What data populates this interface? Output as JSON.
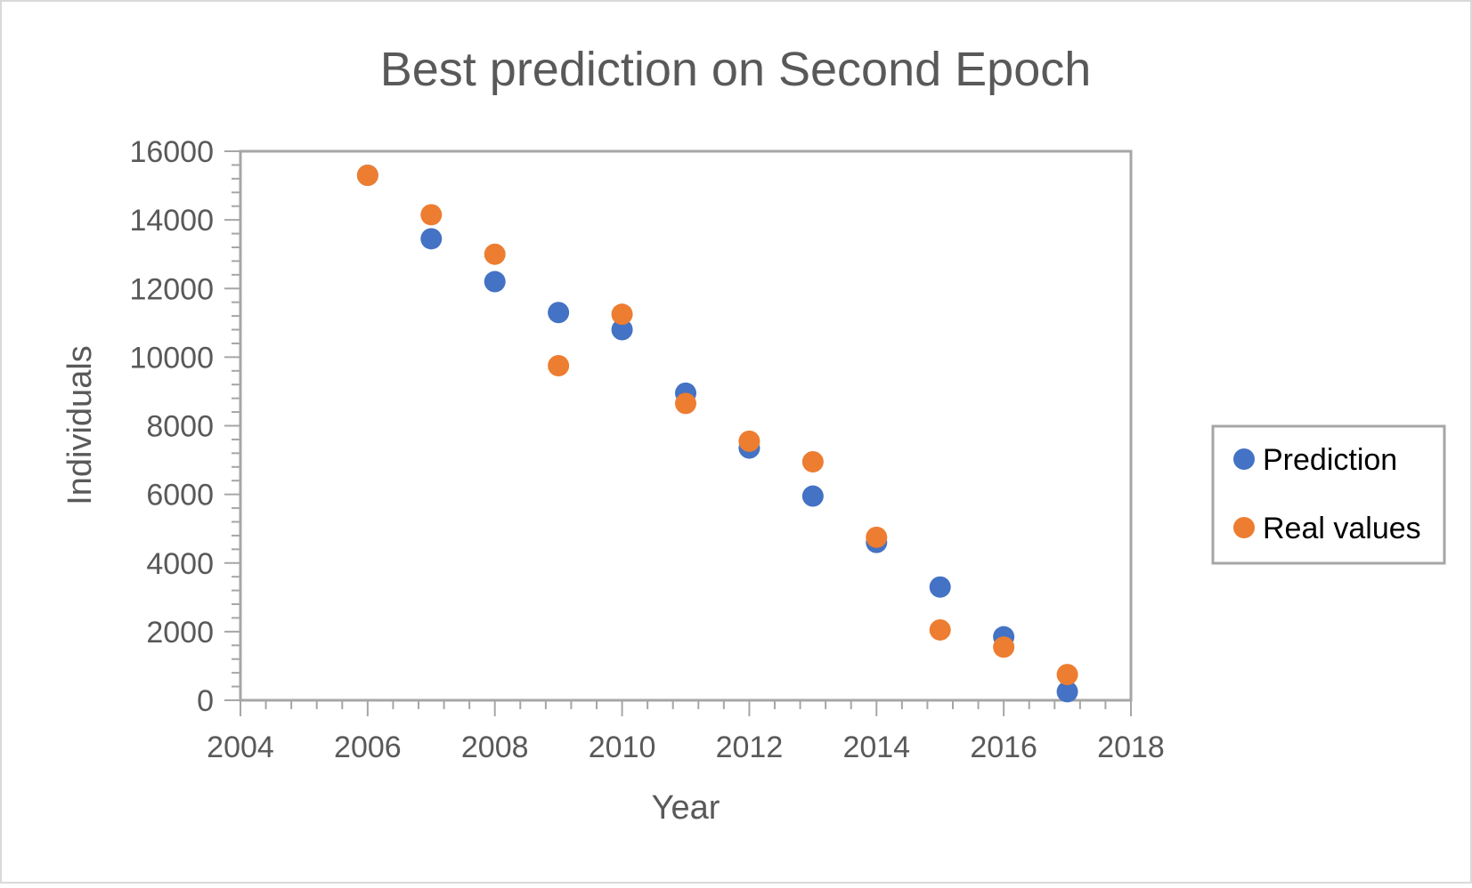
{
  "chart_data": {
    "type": "scatter",
    "title": "Best prediction on Second Epoch",
    "xlabel": "Year",
    "ylabel": "Individuals",
    "xlim": [
      2004,
      2018
    ],
    "ylim": [
      0,
      16000
    ],
    "x_ticks": [
      "2004",
      "2006",
      "2008",
      "2010",
      "2012",
      "2014",
      "2016",
      "2018"
    ],
    "y_ticks": [
      "0",
      "2000",
      "4000",
      "6000",
      "8000",
      "10000",
      "12000",
      "14000",
      "16000"
    ],
    "grid": false,
    "legend_position": "right",
    "series": [
      {
        "name": "Prediction",
        "color": "#4472C4",
        "points": [
          {
            "x": 2006,
            "y": 15300
          },
          {
            "x": 2007,
            "y": 13450
          },
          {
            "x": 2008,
            "y": 12200
          },
          {
            "x": 2009,
            "y": 11300
          },
          {
            "x": 2010,
            "y": 10800
          },
          {
            "x": 2011,
            "y": 8950
          },
          {
            "x": 2012,
            "y": 7350
          },
          {
            "x": 2013,
            "y": 5950
          },
          {
            "x": 2014,
            "y": 4600
          },
          {
            "x": 2015,
            "y": 3300
          },
          {
            "x": 2016,
            "y": 1850
          },
          {
            "x": 2017,
            "y": 250
          }
        ]
      },
      {
        "name": "Real values",
        "color": "#ED7D31",
        "points": [
          {
            "x": 2006,
            "y": 15300
          },
          {
            "x": 2007,
            "y": 14150
          },
          {
            "x": 2008,
            "y": 13000
          },
          {
            "x": 2009,
            "y": 9750
          },
          {
            "x": 2010,
            "y": 11250
          },
          {
            "x": 2011,
            "y": 8650
          },
          {
            "x": 2012,
            "y": 7550
          },
          {
            "x": 2013,
            "y": 6950
          },
          {
            "x": 2014,
            "y": 4750
          },
          {
            "x": 2015,
            "y": 2050
          },
          {
            "x": 2016,
            "y": 1550
          },
          {
            "x": 2017,
            "y": 750
          }
        ]
      }
    ]
  },
  "colors": {
    "axis": "#A6A6A6",
    "text": "#595959",
    "frame": "#D9D9D9"
  }
}
